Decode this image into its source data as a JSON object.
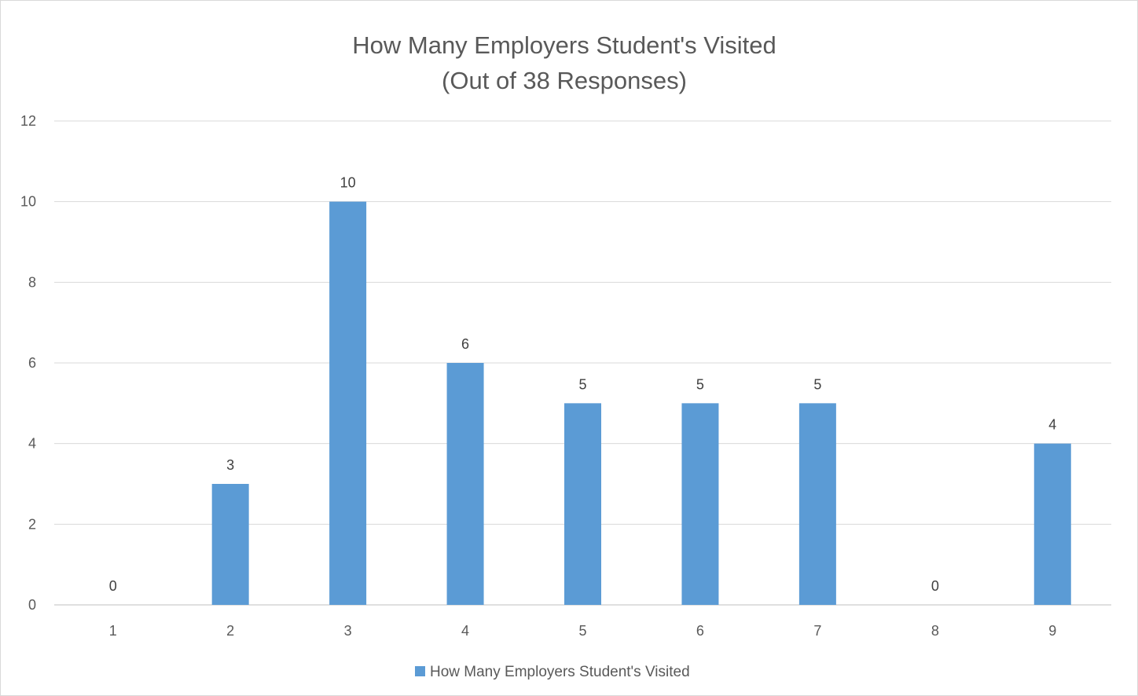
{
  "chart_data": {
    "type": "bar",
    "title": "How Many Employers Student's Visited",
    "subtitle": "(Out of 38 Responses)",
    "categories": [
      "1",
      "2",
      "3",
      "4",
      "5",
      "6",
      "7",
      "8",
      "9"
    ],
    "series": [
      {
        "name": "How Many Employers Student's Visited",
        "values": [
          0,
          3,
          10,
          6,
          5,
          5,
          5,
          0,
          4
        ],
        "color": "#5b9bd5"
      }
    ],
    "y_ticks": [
      "0",
      "2",
      "4",
      "6",
      "8",
      "10",
      "12"
    ],
    "ylim": [
      0,
      12
    ],
    "grid": true,
    "data_labels": true,
    "legend_position": "bottom",
    "xlabel": "",
    "ylabel": ""
  }
}
